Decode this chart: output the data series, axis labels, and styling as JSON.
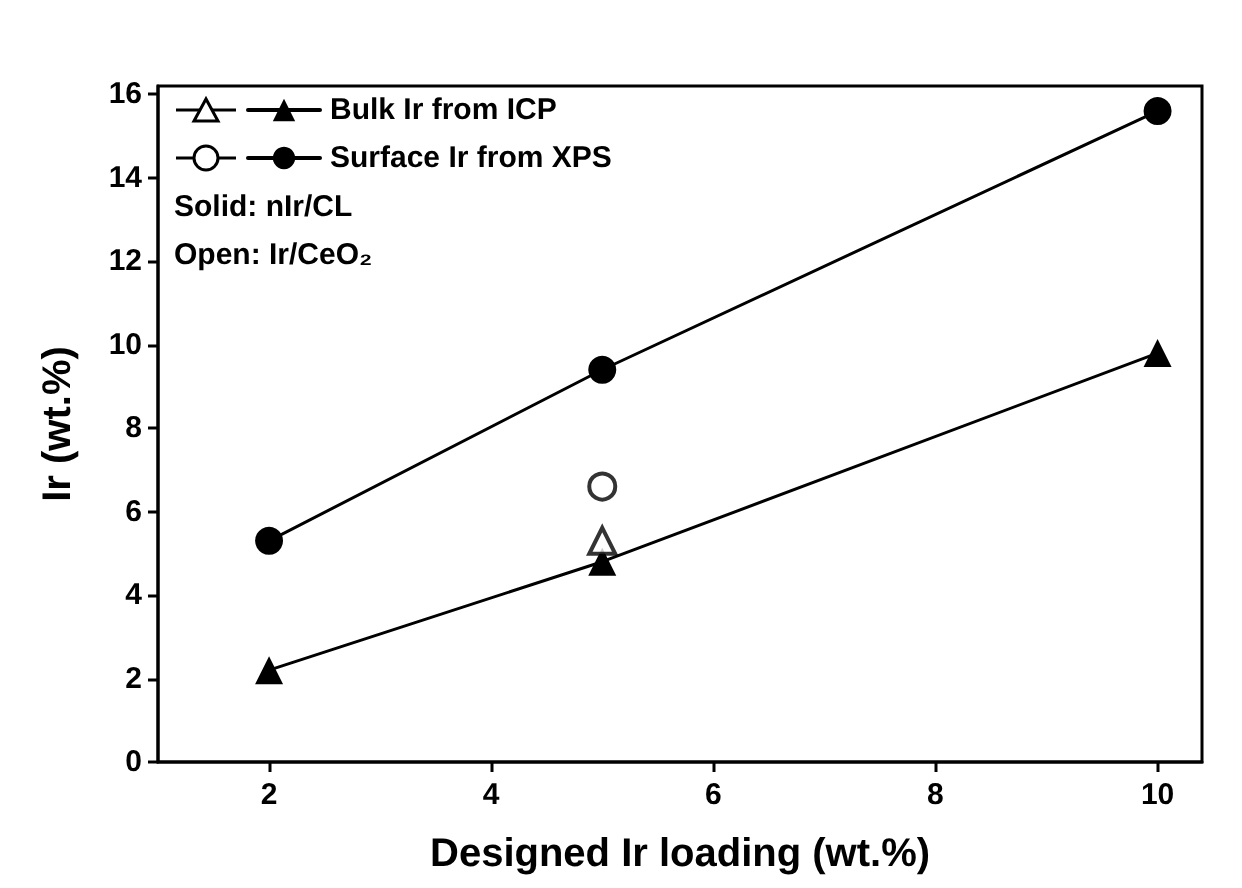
{
  "chart_data": {
    "type": "line",
    "xlabel": "Designed Ir loading (wt.%)",
    "ylabel": "Ir (wt.%)",
    "xlim": [
      1,
      10.4
    ],
    "xticks": [
      2,
      4,
      6,
      8,
      10
    ],
    "ylim": [
      0,
      16.2
    ],
    "yticks": [
      0,
      2,
      4,
      6,
      8,
      10,
      12,
      14,
      16
    ],
    "grid": false,
    "legend": "top left",
    "line_style": "solid",
    "annotations": [
      "Solid: nIr/CL",
      "Open: Ir/CeO₂"
    ],
    "series": [
      {
        "name": "Bulk Ir from ICP",
        "type": "line",
        "marker": "triangle",
        "color": "#000000",
        "x": [
          2,
          5,
          10
        ],
        "values": [
          2.2,
          4.8,
          9.8
        ]
      },
      {
        "name": "Surface Ir from XPS",
        "type": "line",
        "marker": "circle",
        "color": "#000000",
        "x": [
          2,
          5,
          10
        ],
        "values": [
          5.3,
          9.4,
          15.6
        ]
      },
      {
        "type": "scatter",
        "marker": "triangle",
        "color": "#000000",
        "x": [
          5
        ],
        "values": [
          5.3
        ]
      },
      {
        "type": "scatter",
        "marker": "circle",
        "color": "#000000",
        "x": [
          5
        ],
        "values": [
          6.6
        ]
      }
    ]
  }
}
